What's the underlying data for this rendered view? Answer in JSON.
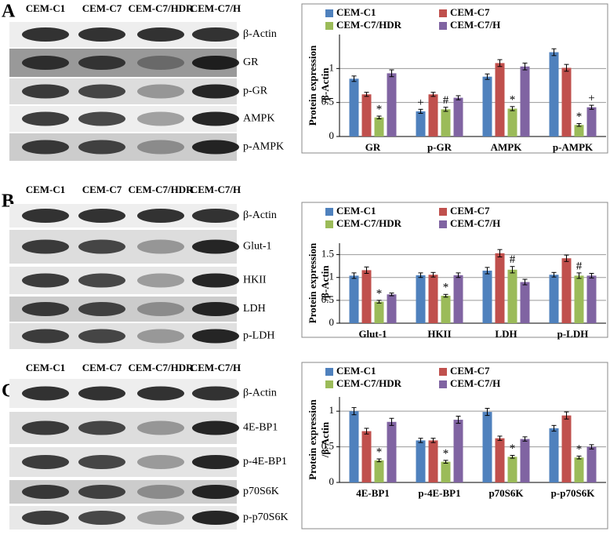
{
  "panels": [
    {
      "letter": "A",
      "lanes": [
        "CEM-C1",
        "CEM-C7",
        "CEM-C7/HDR",
        "CEM-C7/H"
      ],
      "proteins": [
        "β-Actin",
        "GR",
        "p-GR",
        "AMPK",
        "p-AMPK"
      ]
    },
    {
      "letter": "B",
      "lanes": [
        "CEM-C1",
        "CEM-C7",
        "CEM-C7/HDR",
        "CEM-C7/H"
      ],
      "proteins": [
        "β-Actin",
        "Glut-1",
        "HKII",
        "LDH",
        "p-LDH"
      ]
    },
    {
      "letter": "C",
      "lanes": [
        "CEM-C1",
        "CEM-C7",
        "CEM-C7/HDR",
        "CEM-C7/H"
      ],
      "proteins": [
        "β-Actin",
        "4E-BP1",
        "p-4E-BP1",
        "p70S6K",
        "p-p70S6K"
      ]
    }
  ],
  "chart_data": [
    {
      "type": "bar",
      "y_label": [
        "Protein expression",
        "/β-Actin"
      ],
      "categories": [
        "GR",
        "p-GR",
        "AMPK",
        "p-AMPK"
      ],
      "ylim": [
        0,
        1.5
      ],
      "yticks": [
        0,
        0.5,
        1
      ],
      "grid": true,
      "series": [
        {
          "name": "CEM-C1",
          "color": "#4f81bd",
          "values": [
            0.85,
            0.37,
            0.88,
            1.24
          ],
          "errors": [
            0.04,
            0.03,
            0.04,
            0.05
          ],
          "annotations": [
            null,
            "+",
            null,
            null
          ]
        },
        {
          "name": "CEM-C7",
          "color": "#c0504d",
          "values": [
            0.62,
            0.62,
            1.08,
            1.01
          ],
          "errors": [
            0.03,
            0.03,
            0.05,
            0.05
          ],
          "annotations": [
            null,
            null,
            null,
            null
          ]
        },
        {
          "name": "CEM-C7/HDR",
          "color": "#9bbb59",
          "values": [
            0.28,
            0.4,
            0.41,
            0.17
          ],
          "errors": [
            0.02,
            0.03,
            0.03,
            0.02
          ],
          "annotations": [
            "*",
            "#",
            "*",
            "*"
          ]
        },
        {
          "name": "CEM-C7/H",
          "color": "#8064a2",
          "values": [
            0.93,
            0.57,
            1.03,
            0.43
          ],
          "errors": [
            0.05,
            0.03,
            0.05,
            0.03
          ],
          "annotations": [
            null,
            null,
            null,
            "+"
          ]
        }
      ]
    },
    {
      "type": "bar",
      "y_label": [
        "Protein expression",
        "/β-Actin"
      ],
      "categories": [
        "Glut-1",
        "HKII",
        "LDH",
        "p-LDH"
      ],
      "ylim": [
        0,
        1.75
      ],
      "yticks": [
        0,
        0.5,
        1,
        1.5
      ],
      "grid": true,
      "series": [
        {
          "name": "CEM-C1",
          "color": "#4f81bd",
          "values": [
            1.04,
            1.05,
            1.15,
            1.06
          ],
          "errors": [
            0.06,
            0.05,
            0.07,
            0.05
          ],
          "annotations": [
            null,
            null,
            null,
            null
          ]
        },
        {
          "name": "CEM-C7",
          "color": "#c0504d",
          "values": [
            1.16,
            1.06,
            1.53,
            1.42
          ],
          "errors": [
            0.07,
            0.05,
            0.08,
            0.07
          ],
          "annotations": [
            null,
            null,
            null,
            null
          ]
        },
        {
          "name": "CEM-C7/HDR",
          "color": "#9bbb59",
          "values": [
            0.47,
            0.6,
            1.17,
            1.04
          ],
          "errors": [
            0.03,
            0.03,
            0.07,
            0.06
          ],
          "annotations": [
            "*",
            "*",
            "#",
            "#"
          ]
        },
        {
          "name": "CEM-C7/H",
          "color": "#8064a2",
          "values": [
            0.63,
            1.05,
            0.9,
            1.04
          ],
          "errors": [
            0.03,
            0.05,
            0.06,
            0.05
          ],
          "annotations": [
            null,
            null,
            null,
            null
          ]
        }
      ]
    },
    {
      "type": "bar",
      "y_label": [
        "Protein expression",
        "/β-Actin"
      ],
      "categories": [
        "4E-BP1",
        "p-4E-BP1",
        "p70S6K",
        "p-p70S6K"
      ],
      "ylim": [
        0,
        1.2
      ],
      "yticks": [
        0,
        0.5,
        1
      ],
      "grid": true,
      "series": [
        {
          "name": "CEM-C1",
          "color": "#4f81bd",
          "values": [
            1.0,
            0.59,
            0.99,
            0.76
          ],
          "errors": [
            0.05,
            0.03,
            0.05,
            0.04
          ],
          "annotations": [
            null,
            null,
            null,
            null
          ]
        },
        {
          "name": "CEM-C7",
          "color": "#c0504d",
          "values": [
            0.72,
            0.59,
            0.62,
            0.94
          ],
          "errors": [
            0.04,
            0.03,
            0.03,
            0.05
          ],
          "annotations": [
            null,
            null,
            null,
            null
          ]
        },
        {
          "name": "CEM-C7/HDR",
          "color": "#9bbb59",
          "values": [
            0.31,
            0.29,
            0.36,
            0.35
          ],
          "errors": [
            0.02,
            0.02,
            0.02,
            0.02
          ],
          "annotations": [
            "*",
            "*",
            "*",
            "*"
          ]
        },
        {
          "name": "CEM-C7/H",
          "color": "#8064a2",
          "values": [
            0.85,
            0.88,
            0.61,
            0.5
          ],
          "errors": [
            0.05,
            0.05,
            0.03,
            0.03
          ],
          "annotations": [
            null,
            null,
            null,
            null
          ]
        }
      ]
    }
  ]
}
